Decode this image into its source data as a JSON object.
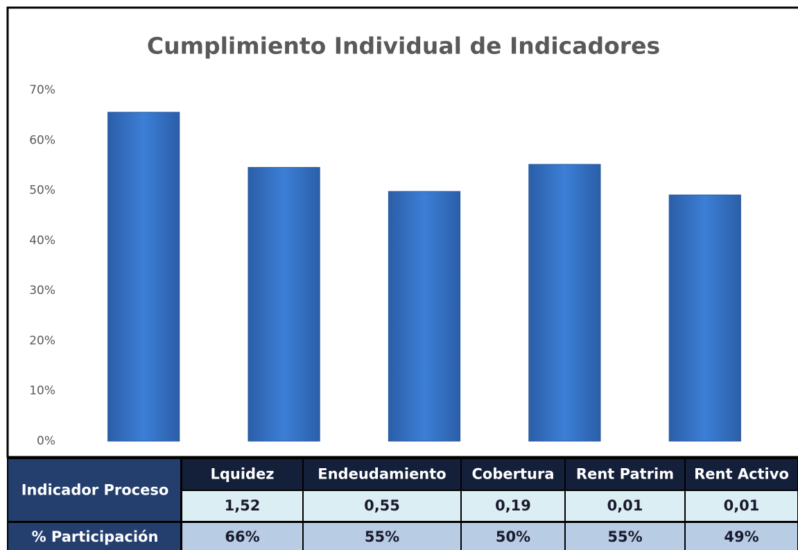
{
  "chart_data": {
    "type": "bar",
    "title": "Cumplimiento Individual de Indicadores",
    "categories": [
      "Lquidez",
      "Endeudamiento",
      "Cobertura",
      "Rent Patrim",
      "Rent Activo"
    ],
    "values": [
      65.6,
      54.6,
      49.8,
      55.2,
      49.1
    ],
    "value_labels": [
      "66%",
      "55%",
      "50%",
      "55%",
      "49%"
    ],
    "color": "#3a78cf",
    "ylim": [
      0,
      70
    ],
    "yticks": [
      {
        "value": 0,
        "label": "0%"
      },
      {
        "value": 10,
        "label": "10%"
      },
      {
        "value": 20,
        "label": "20%"
      },
      {
        "value": 30,
        "label": "30%"
      },
      {
        "value": 40,
        "label": "40%"
      },
      {
        "value": 50,
        "label": "50%"
      },
      {
        "value": 60,
        "label": "60%"
      },
      {
        "value": 70,
        "label": "70%"
      }
    ],
    "grid": false,
    "row_headers": [
      "Indicador Proceso",
      "% Participación"
    ],
    "proceso": [
      "1,52",
      "0,55",
      "0,19",
      "0,01",
      "0,01"
    ]
  }
}
